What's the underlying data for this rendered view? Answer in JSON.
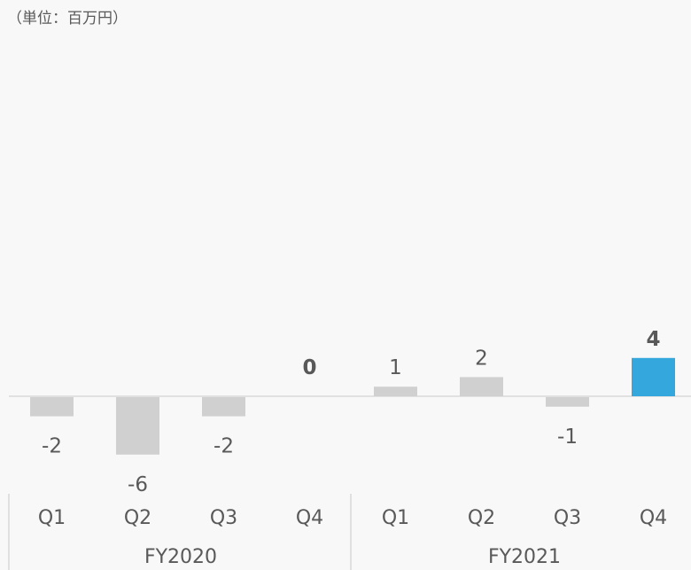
{
  "unit_label": "（単位：百万円）",
  "colors": {
    "bar": "#d0d0d0",
    "highlight": "#34a8dd",
    "axis": "#d9d9d9",
    "text": "#595959",
    "background": "#f8f8f8"
  },
  "chart_data": {
    "type": "bar",
    "title": "",
    "xlabel": "",
    "ylabel": "",
    "categories": [
      "Q1",
      "Q2",
      "Q3",
      "Q4",
      "Q1",
      "Q2",
      "Q3",
      "Q4"
    ],
    "groups": [
      {
        "label": "FY2020",
        "categories": [
          "Q1",
          "Q2",
          "Q3",
          "Q4"
        ]
      },
      {
        "label": "FY2021",
        "categories": [
          "Q1",
          "Q2",
          "Q3",
          "Q4"
        ]
      }
    ],
    "values": [
      -2,
      -6,
      -2,
      0,
      1,
      2,
      -1,
      4
    ],
    "highlight": [
      false,
      false,
      false,
      false,
      false,
      false,
      false,
      true
    ],
    "bold_labels": [
      false,
      false,
      false,
      true,
      false,
      false,
      false,
      true
    ],
    "grid": false,
    "legend": "none"
  }
}
